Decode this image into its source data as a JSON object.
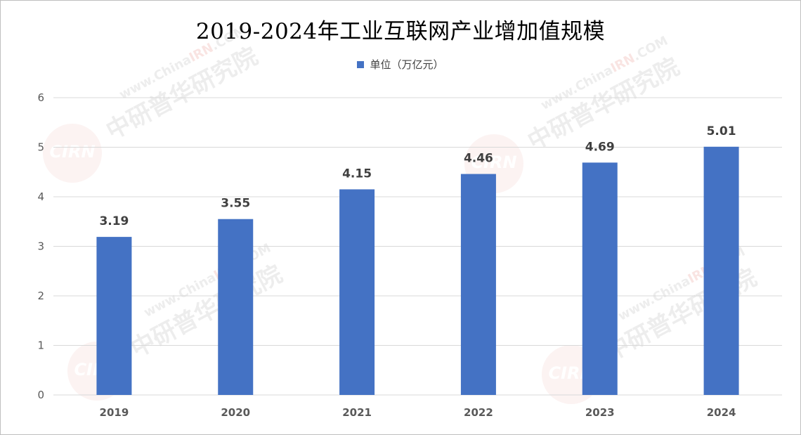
{
  "chart_data": {
    "type": "bar",
    "title": "2019-2024年工业互联网产业增加值规模",
    "categories": [
      "2019",
      "2020",
      "2021",
      "2022",
      "2023",
      "2024"
    ],
    "series": [
      {
        "name": "单位（万亿元）",
        "values": [
          3.19,
          3.55,
          4.15,
          4.46,
          4.69,
          5.01
        ]
      }
    ],
    "data_labels": [
      "3.19",
      "3.55",
      "4.15",
      "4.46",
      "4.69",
      "5.01"
    ],
    "ylim": [
      0,
      6
    ],
    "yticks": [
      "0",
      "1",
      "2",
      "3",
      "4",
      "5",
      "6"
    ],
    "grid": true,
    "legend_position": "top-center",
    "colors": {
      "bar": "#4472c4",
      "grid": "#d9d9d9",
      "axis_text": "#595959",
      "label_text": "#404040"
    }
  },
  "watermark": {
    "logo_text": "CIRN",
    "url_prefix": "www.China",
    "url_highlight": "IRN",
    "url_suffix": ".COM",
    "name": "中研普华研究院"
  }
}
